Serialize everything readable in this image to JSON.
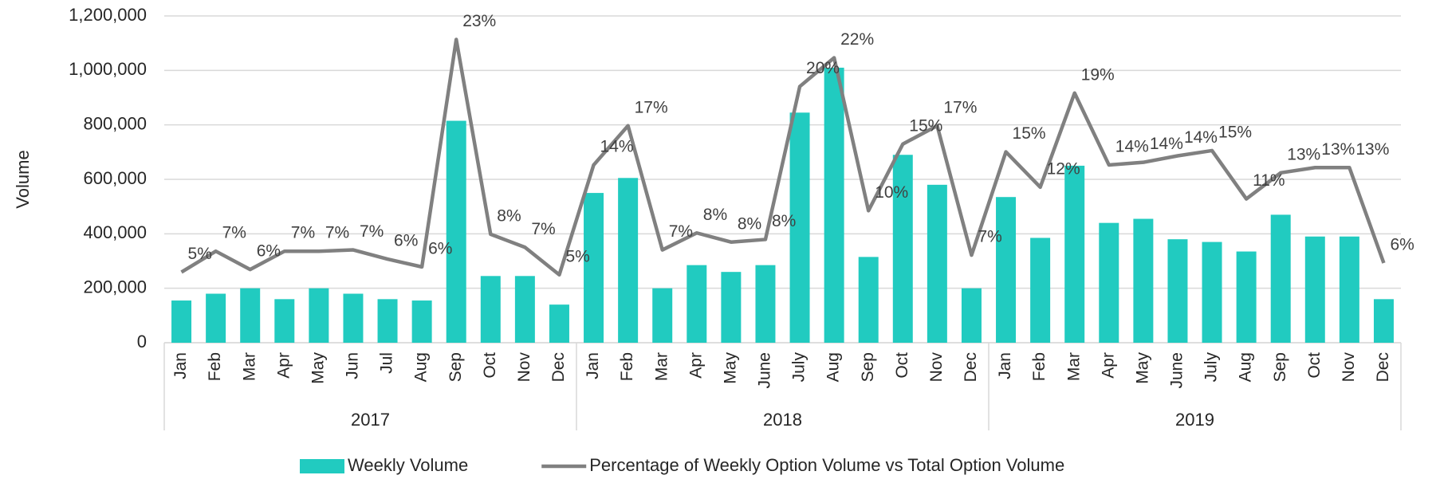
{
  "chart_data": {
    "type": "bar_line",
    "y_label": "Volume",
    "groups": [
      {
        "name": "2017",
        "categories": [
          "Jan",
          "Feb",
          "Mar",
          "Apr",
          "May",
          "Jun",
          "Jul",
          "Aug",
          "Sep",
          "Oct",
          "Nov",
          "Dec"
        ]
      },
      {
        "name": "2018",
        "categories": [
          "Jan",
          "Feb",
          "Mar",
          "Apr",
          "May",
          "June",
          "July",
          "Aug",
          "Sep",
          "Oct",
          "Nov",
          "Dec"
        ]
      },
      {
        "name": "2019",
        "categories": [
          "Jan",
          "Feb",
          "Mar",
          "Apr",
          "May",
          "June",
          "July",
          "Aug",
          "Sep",
          "Oct",
          "Nov",
          "Dec"
        ]
      }
    ],
    "series": [
      {
        "name": "Weekly Volume",
        "type": "bar",
        "color": "#21cbc0",
        "values": [
          155000,
          180000,
          200000,
          160000,
          200000,
          180000,
          160000,
          155000,
          815000,
          245000,
          245000,
          140000,
          550000,
          605000,
          200000,
          285000,
          260000,
          285000,
          845000,
          1010000,
          315000,
          690000,
          580000,
          200000,
          535000,
          385000,
          650000,
          440000,
          455000,
          380000,
          370000,
          335000,
          470000,
          390000,
          390000,
          160000
        ]
      },
      {
        "name": "Percentage of Weekly Option Volume vs Total Option Volume",
        "type": "line",
        "axis": "y2",
        "color": "#808080",
        "values": [
          5.4,
          7.0,
          5.6,
          7.0,
          7.0,
          7.1,
          6.4,
          5.8,
          23.2,
          8.3,
          7.3,
          5.2,
          13.6,
          16.6,
          7.1,
          8.4,
          7.7,
          7.9,
          19.6,
          21.8,
          10.1,
          15.2,
          16.6,
          6.7,
          14.6,
          11.9,
          19.1,
          13.6,
          13.8,
          14.3,
          14.7,
          11.0,
          13.0,
          13.4,
          13.4,
          6.1
        ],
        "value_labels": [
          "5%",
          "7%",
          "6%",
          "7%",
          "7%",
          "7%",
          "6%",
          "6%",
          "23%",
          "8%",
          "7%",
          "5%",
          "14%",
          "17%",
          "7%",
          "8%",
          "8%",
          "8%",
          "20%",
          "22%",
          "10%",
          "15%",
          "17%",
          "7%",
          "15%",
          "12%",
          "19%",
          "14%",
          "14%",
          "14%",
          "15%",
          "11%",
          "13%",
          "13%",
          "13%",
          "6%"
        ]
      }
    ],
    "ylim": [
      0,
      1200000
    ],
    "yticks": [
      0,
      {
        "value": 200000,
        "label": "200,000"
      },
      {
        "value": 400000,
        "label": "400,000"
      },
      {
        "value": 600000,
        "label": "600,000"
      },
      {
        "value": 800000,
        "label": "800,000"
      },
      {
        "value": 1000000,
        "label": "1,000,000"
      },
      {
        "value": 1200000,
        "label": "1,200,000"
      }
    ],
    "y2lim": [
      0,
      25
    ],
    "grid": true,
    "legend": "bottom"
  }
}
